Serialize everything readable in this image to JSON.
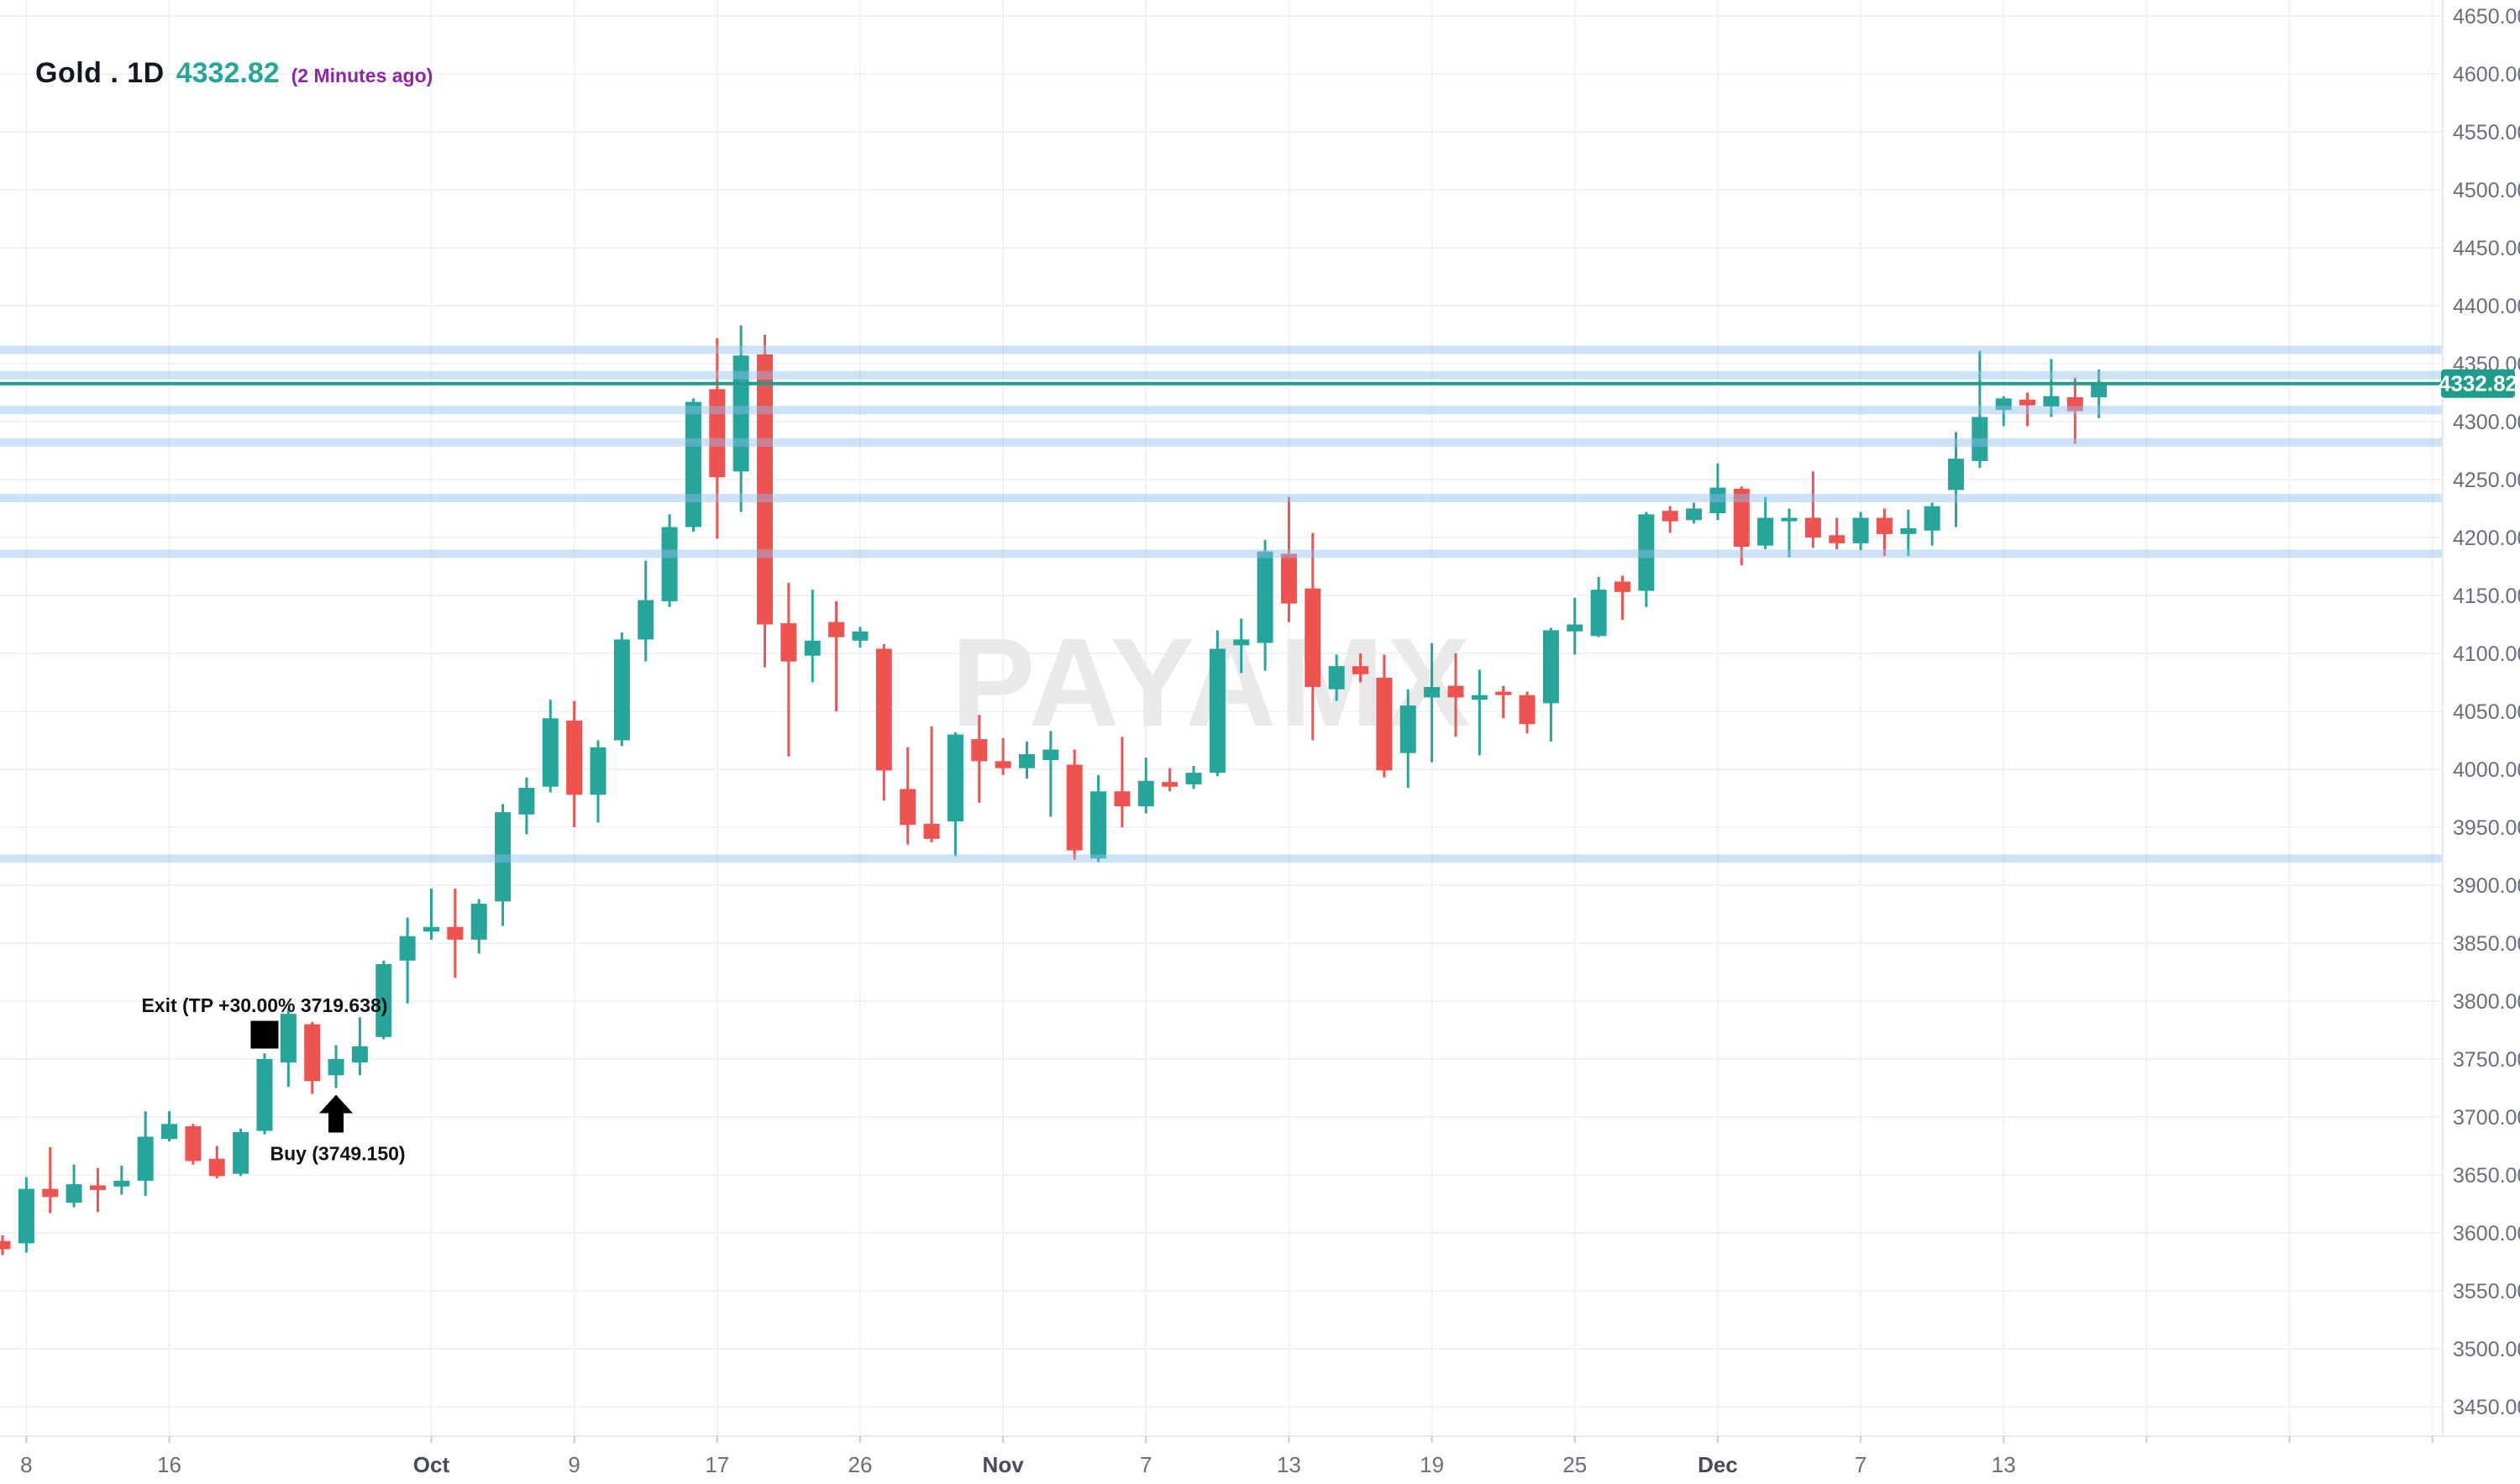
{
  "header": {
    "symbol_title": "Gold . 1D",
    "price": "4332.82",
    "ago": "(2 Minutes ago)"
  },
  "watermark": {
    "text": "PAYAMX"
  },
  "colors": {
    "up": "#26a69a",
    "down": "#ef5350",
    "price_line": "#1e9d8b",
    "badge_bg": "#1e9d8b",
    "badge_text": "#ffffff",
    "band": "#90bfee",
    "grid": "#f0f2f5",
    "axis_text": "#6a6e79",
    "axis_month_text": "#474b57",
    "title_text": "#131722",
    "title_price": "#26a69a",
    "ago_text": "#8e24aa",
    "marker_text": "#111111",
    "marker_shape": "#000000",
    "watermark_text": "#e8e9eb",
    "axis_border": "#e7e9ee"
  },
  "y_axis": {
    "price_label": "4332.82"
  },
  "chart_data": {
    "type": "candlestick",
    "title": "Gold 1D",
    "last_price": 4332.82,
    "grid": true,
    "y_range": {
      "min": 3450,
      "max": 4650,
      "step": 50
    },
    "y_tick_labels": [
      "4650.00",
      "4600.00",
      "4550.00",
      "4500.00",
      "4450.00",
      "4400.00",
      "4350.00",
      "4300.00",
      "4250.00",
      "4200.00",
      "4150.00",
      "4100.00",
      "4050.00",
      "4000.00",
      "3950.00",
      "3900.00",
      "3850.00",
      "3800.00",
      "3750.00",
      "3700.00",
      "3650.00",
      "3600.00",
      "3550.00",
      "3500.00",
      "3450.00"
    ],
    "x_ticks": [
      {
        "label": "8",
        "index": 1
      },
      {
        "label": "16",
        "index": 7
      },
      {
        "label": "Oct",
        "index": 18
      },
      {
        "label": "9",
        "index": 24
      },
      {
        "label": "17",
        "index": 30
      },
      {
        "label": "26",
        "index": 36
      },
      {
        "label": "Nov",
        "index": 42
      },
      {
        "label": "7",
        "index": 48
      },
      {
        "label": "13",
        "index": 54
      },
      {
        "label": "19",
        "index": 60
      },
      {
        "label": "25",
        "index": 66
      },
      {
        "label": "Dec",
        "index": 72
      },
      {
        "label": "7",
        "index": 78
      },
      {
        "label": "13",
        "index": 84
      },
      {
        "label": "",
        "index": 90
      },
      {
        "label": "",
        "index": 96
      },
      {
        "label": "",
        "index": 102
      }
    ],
    "support_resistance_levels": [
      4362,
      4340,
      4310,
      4282,
      4234,
      4186,
      3923
    ],
    "price_line": 4332.82,
    "candles": [
      [
        3593,
        3598,
        3581,
        3586
      ],
      [
        3591,
        3648,
        3583,
        3638
      ],
      [
        3638,
        3674,
        3617,
        3631
      ],
      [
        3626,
        3659,
        3622,
        3642
      ],
      [
        3641,
        3656,
        3618,
        3637
      ],
      [
        3640,
        3658,
        3633,
        3645
      ],
      [
        3645,
        3705,
        3632,
        3683
      ],
      [
        3681,
        3705,
        3679,
        3694
      ],
      [
        3692,
        3694,
        3659,
        3662
      ],
      [
        3664,
        3675,
        3647,
        3649
      ],
      [
        3651,
        3690,
        3649,
        3687
      ],
      [
        3688,
        3755,
        3685,
        3750
      ],
      [
        3747,
        3794,
        3726,
        3789
      ],
      [
        3780,
        3782,
        3720,
        3731
      ],
      [
        3736,
        3762,
        3725,
        3750
      ],
      [
        3747,
        3786,
        3736,
        3761
      ],
      [
        3769,
        3835,
        3767,
        3832
      ],
      [
        3835,
        3872,
        3798,
        3856
      ],
      [
        3860,
        3897,
        3853,
        3864
      ],
      [
        3864,
        3897,
        3820,
        3853
      ],
      [
        3853,
        3888,
        3841,
        3884
      ],
      [
        3886,
        3970,
        3865,
        3963
      ],
      [
        3961,
        3993,
        3944,
        3984
      ],
      [
        3985,
        4060,
        3980,
        4044
      ],
      [
        4042,
        4059,
        3950,
        3978
      ],
      [
        3978,
        4025,
        3954,
        4019
      ],
      [
        4025,
        4118,
        4020,
        4112
      ],
      [
        4112,
        4180,
        4093,
        4146
      ],
      [
        4145,
        4220,
        4140,
        4209
      ],
      [
        4209,
        4320,
        4205,
        4317
      ],
      [
        4328,
        4372,
        4199,
        4252
      ],
      [
        4257,
        4383,
        4222,
        4357
      ],
      [
        4358,
        4375,
        4088,
        4125
      ],
      [
        4126,
        4161,
        4011,
        4093
      ],
      [
        4098,
        4155,
        4075,
        4111
      ],
      [
        4127,
        4145,
        4050,
        4114
      ],
      [
        4111,
        4123,
        4105,
        4119
      ],
      [
        4104,
        4108,
        3973,
        3999
      ],
      [
        3983,
        4019,
        3935,
        3952
      ],
      [
        3953,
        4037,
        3937,
        3940
      ],
      [
        3955,
        4032,
        3925,
        4030
      ],
      [
        4026,
        4047,
        3971,
        4007
      ],
      [
        4007,
        4027,
        3995,
        4001
      ],
      [
        4001,
        4024,
        3992,
        4013
      ],
      [
        4008,
        4033,
        3959,
        4017
      ],
      [
        4004,
        4017,
        3922,
        3930
      ],
      [
        3923,
        3995,
        3920,
        3981
      ],
      [
        3981,
        4028,
        3950,
        3968
      ],
      [
        3968,
        4010,
        3962,
        3990
      ],
      [
        3989,
        4001,
        3981,
        3985
      ],
      [
        3987,
        4003,
        3983,
        3997
      ],
      [
        3997,
        4120,
        3994,
        4104
      ],
      [
        4107,
        4130,
        4083,
        4112
      ],
      [
        4109,
        4198,
        4085,
        4188
      ],
      [
        4186,
        4235,
        4127,
        4143
      ],
      [
        4156,
        4204,
        4025,
        4071
      ],
      [
        4069,
        4099,
        4059,
        4089
      ],
      [
        4089,
        4100,
        4075,
        4082
      ],
      [
        4079,
        4099,
        3993,
        3999
      ],
      [
        4014,
        4069,
        3984,
        4055
      ],
      [
        4062,
        4109,
        4006,
        4071
      ],
      [
        4072,
        4100,
        4028,
        4062
      ],
      [
        4060,
        4086,
        4012,
        4064
      ],
      [
        4067,
        4072,
        4044,
        4064
      ],
      [
        4064,
        4067,
        4031,
        4039
      ],
      [
        4057,
        4122,
        4024,
        4120
      ],
      [
        4119,
        4148,
        4099,
        4125
      ],
      [
        4115,
        4166,
        4114,
        4155
      ],
      [
        4162,
        4167,
        4129,
        4153
      ],
      [
        4154,
        4222,
        4140,
        4220
      ],
      [
        4223,
        4227,
        4204,
        4214
      ],
      [
        4215,
        4230,
        4212,
        4225
      ],
      [
        4221,
        4264,
        4215,
        4243
      ],
      [
        4242,
        4244,
        4176,
        4192
      ],
      [
        4193,
        4235,
        4190,
        4217
      ],
      [
        4214,
        4225,
        4183,
        4217
      ],
      [
        4217,
        4257,
        4191,
        4200
      ],
      [
        4202,
        4217,
        4190,
        4195
      ],
      [
        4195,
        4222,
        4189,
        4217
      ],
      [
        4217,
        4225,
        4184,
        4203
      ],
      [
        4203,
        4224,
        4184,
        4208
      ],
      [
        4206,
        4230,
        4193,
        4227
      ],
      [
        4241,
        4291,
        4209,
        4268
      ],
      [
        4266,
        4361,
        4260,
        4304
      ],
      [
        4310,
        4322,
        4296,
        4320
      ],
      [
        4319,
        4325,
        4296,
        4314
      ],
      [
        4313,
        4354,
        4304,
        4322
      ],
      [
        4321,
        4338,
        4281,
        4309
      ],
      [
        4321,
        4345,
        4303,
        4333
      ]
    ],
    "markers": {
      "exit": {
        "candle_index": 11,
        "label": "Exit (TP +30.00% 3719.638)",
        "shape": "square",
        "price": 3771
      },
      "buy": {
        "candle_index": 14,
        "label": "Buy (3749.150)",
        "shape": "arrow-up",
        "below_price": 3725
      }
    }
  }
}
